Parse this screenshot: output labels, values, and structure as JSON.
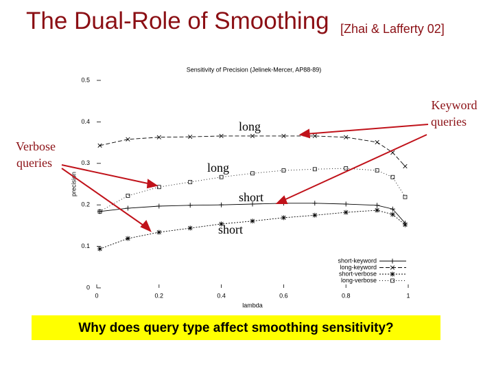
{
  "slide": {
    "title": "The Dual-Role of Smoothing",
    "citation": "[Zhai & Lafferty 02]",
    "keyword_label": [
      "Keyword",
      "queries"
    ],
    "verbose_label": [
      "Verbose",
      "queries"
    ],
    "curve_labels": [
      "long",
      "long",
      "short",
      "short"
    ],
    "question": "Why does query type affect smoothing sensitivity?"
  },
  "chart_data": {
    "type": "line",
    "title": "Sensitivity of Precision (Jelinek-Mercer, AP88-89)",
    "x_label": "lambda",
    "y_label": "precision",
    "x": [
      0.01,
      0.1,
      0.2,
      0.3,
      0.4,
      0.5,
      0.6,
      0.7,
      0.8,
      0.9,
      0.95,
      0.99
    ],
    "series": [
      {
        "name": "short-keyword",
        "marker": "plus",
        "color": "#000000",
        "values": [
          0.184,
          0.192,
          0.197,
          0.199,
          0.2,
          0.202,
          0.204,
          0.204,
          0.202,
          0.199,
          0.19,
          0.156
        ]
      },
      {
        "name": "long-keyword",
        "marker": "cross",
        "color": "#000000",
        "values": [
          0.343,
          0.358,
          0.363,
          0.364,
          0.366,
          0.366,
          0.366,
          0.366,
          0.363,
          0.351,
          0.326,
          0.293
        ]
      },
      {
        "name": "short-verbose",
        "marker": "star",
        "color": "#000000",
        "values": [
          0.094,
          0.119,
          0.134,
          0.144,
          0.154,
          0.161,
          0.169,
          0.175,
          0.182,
          0.187,
          0.177,
          0.152
        ]
      },
      {
        "name": "long-verbose",
        "marker": "square",
        "color": "#000000",
        "values": [
          0.184,
          0.222,
          0.243,
          0.255,
          0.267,
          0.276,
          0.283,
          0.286,
          0.288,
          0.283,
          0.267,
          0.219
        ]
      }
    ],
    "xlim": [
      0,
      1
    ],
    "ylim": [
      0,
      0.5
    ],
    "xticks": [
      0,
      0.2,
      0.4,
      0.6,
      0.8,
      1
    ],
    "yticks": [
      0,
      0.1,
      0.2,
      0.3,
      0.4,
      0.5
    ],
    "legend": "lower-right"
  }
}
